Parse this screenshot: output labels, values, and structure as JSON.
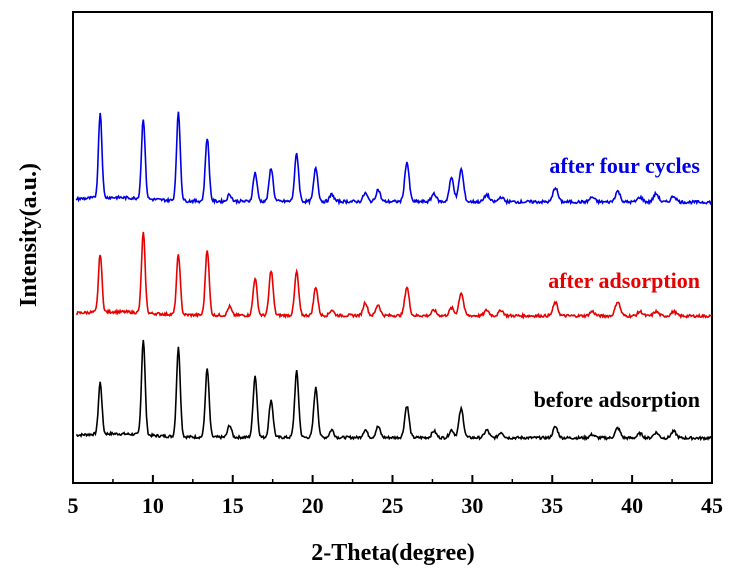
{
  "chart_data": {
    "type": "line",
    "title": "",
    "xlabel": "2-Theta(degree)",
    "ylabel": "Intensity(a.u.)",
    "xlim": [
      5,
      45
    ],
    "x_ticks": [
      "5",
      "10",
      "15",
      "20",
      "25",
      "30",
      "35",
      "40",
      "45"
    ],
    "y_ticks_labeled": false,
    "grid": false,
    "legend": "labels placed beside each curve on the right",
    "peaks_2theta": [
      6.7,
      9.4,
      11.6,
      13.4,
      14.8,
      16.4,
      17.4,
      19.0,
      20.2,
      21.2,
      23.3,
      24.1,
      25.9,
      27.6,
      28.7,
      29.3,
      30.9,
      31.8,
      35.2,
      37.5,
      39.1,
      40.5,
      41.5,
      42.6
    ],
    "series": [
      {
        "name": "before adsorption",
        "color": "#000000",
        "peak_intensities": [
          0.47,
          0.87,
          0.81,
          0.62,
          0.11,
          0.56,
          0.34,
          0.6,
          0.45,
          0.07,
          0.07,
          0.1,
          0.29,
          0.06,
          0.07,
          0.26,
          0.07,
          0.05,
          0.1,
          0.03,
          0.09,
          0.04,
          0.05,
          0.06
        ]
      },
      {
        "name": "after adsorption",
        "color": "#e60000",
        "peak_intensities": [
          0.53,
          0.73,
          0.55,
          0.6,
          0.08,
          0.34,
          0.41,
          0.4,
          0.26,
          0.05,
          0.12,
          0.1,
          0.26,
          0.05,
          0.07,
          0.21,
          0.05,
          0.05,
          0.12,
          0.04,
          0.13,
          0.04,
          0.04,
          0.04
        ]
      },
      {
        "name": "after four cycles",
        "color": "#0000e6",
        "peak_intensities": [
          0.71,
          0.67,
          0.73,
          0.53,
          0.06,
          0.24,
          0.28,
          0.4,
          0.28,
          0.06,
          0.07,
          0.1,
          0.33,
          0.07,
          0.2,
          0.27,
          0.06,
          0.04,
          0.12,
          0.04,
          0.09,
          0.04,
          0.07,
          0.05
        ]
      }
    ]
  }
}
